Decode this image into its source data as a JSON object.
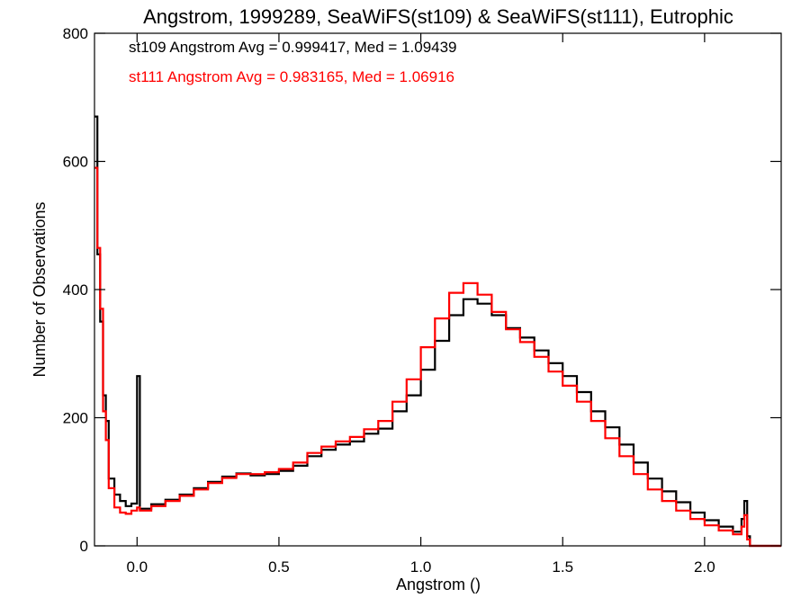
{
  "chart_data": {
    "type": "line",
    "title": "Angstrom, 1999289, SeaWiFS(st109) & SeaWiFS(st111), Eutrophic",
    "xlabel": "Angstrom ()",
    "ylabel": "Number of Observations",
    "xlim": [
      -0.15,
      2.27
    ],
    "ylim": [
      0,
      800
    ],
    "xticks": [
      0.0,
      0.5,
      1.0,
      1.5,
      2.0
    ],
    "xtick_labels": [
      "0.0",
      "0.5",
      "1.0",
      "1.5",
      "2.0"
    ],
    "yticks": [
      0,
      200,
      400,
      600,
      800
    ],
    "ytick_labels": [
      "0",
      "200",
      "400",
      "600",
      "800"
    ],
    "step": "histogram",
    "grid": false,
    "annotations": [
      {
        "text": "st109 Angstrom Avg = 0.999417, Med = 1.09439",
        "color": "#000000"
      },
      {
        "text": "st111 Angstrom Avg = 0.983165, Med = 1.06916",
        "color": "#ff0000"
      }
    ],
    "series": [
      {
        "color": "#000000",
        "points": [
          [
            -0.15,
            670
          ],
          [
            -0.14,
            455
          ],
          [
            -0.13,
            350
          ],
          [
            -0.12,
            235
          ],
          [
            -0.11,
            195
          ],
          [
            -0.1,
            105
          ],
          [
            -0.08,
            80
          ],
          [
            -0.06,
            70
          ],
          [
            -0.04,
            62
          ],
          [
            -0.02,
            66
          ],
          [
            0.0,
            265
          ],
          [
            0.01,
            58
          ],
          [
            0.05,
            65
          ],
          [
            0.1,
            72
          ],
          [
            0.15,
            80
          ],
          [
            0.2,
            90
          ],
          [
            0.25,
            100
          ],
          [
            0.3,
            108
          ],
          [
            0.35,
            113
          ],
          [
            0.4,
            110
          ],
          [
            0.45,
            112
          ],
          [
            0.5,
            117
          ],
          [
            0.55,
            125
          ],
          [
            0.6,
            140
          ],
          [
            0.65,
            150
          ],
          [
            0.7,
            158
          ],
          [
            0.75,
            163
          ],
          [
            0.8,
            175
          ],
          [
            0.85,
            183
          ],
          [
            0.9,
            210
          ],
          [
            0.95,
            235
          ],
          [
            1.0,
            275
          ],
          [
            1.05,
            320
          ],
          [
            1.1,
            360
          ],
          [
            1.15,
            385
          ],
          [
            1.2,
            378
          ],
          [
            1.25,
            360
          ],
          [
            1.3,
            340
          ],
          [
            1.35,
            325
          ],
          [
            1.4,
            305
          ],
          [
            1.45,
            285
          ],
          [
            1.5,
            265
          ],
          [
            1.55,
            240
          ],
          [
            1.6,
            210
          ],
          [
            1.65,
            185
          ],
          [
            1.7,
            158
          ],
          [
            1.75,
            130
          ],
          [
            1.8,
            105
          ],
          [
            1.85,
            85
          ],
          [
            1.9,
            68
          ],
          [
            1.95,
            52
          ],
          [
            2.0,
            40
          ],
          [
            2.05,
            30
          ],
          [
            2.1,
            22
          ],
          [
            2.13,
            42
          ],
          [
            2.14,
            70
          ],
          [
            2.15,
            15
          ],
          [
            2.16,
            0
          ],
          [
            2.27,
            0
          ]
        ]
      },
      {
        "color": "#ff0000",
        "points": [
          [
            -0.15,
            590
          ],
          [
            -0.14,
            465
          ],
          [
            -0.13,
            370
          ],
          [
            -0.12,
            210
          ],
          [
            -0.11,
            165
          ],
          [
            -0.1,
            90
          ],
          [
            -0.08,
            60
          ],
          [
            -0.06,
            52
          ],
          [
            -0.04,
            50
          ],
          [
            -0.02,
            55
          ],
          [
            0.0,
            60
          ],
          [
            0.01,
            55
          ],
          [
            0.05,
            62
          ],
          [
            0.1,
            70
          ],
          [
            0.15,
            78
          ],
          [
            0.2,
            88
          ],
          [
            0.25,
            98
          ],
          [
            0.3,
            106
          ],
          [
            0.35,
            112
          ],
          [
            0.4,
            112
          ],
          [
            0.45,
            115
          ],
          [
            0.5,
            120
          ],
          [
            0.55,
            130
          ],
          [
            0.6,
            145
          ],
          [
            0.65,
            155
          ],
          [
            0.7,
            163
          ],
          [
            0.75,
            170
          ],
          [
            0.8,
            182
          ],
          [
            0.85,
            195
          ],
          [
            0.9,
            225
          ],
          [
            0.95,
            260
          ],
          [
            1.0,
            310
          ],
          [
            1.05,
            355
          ],
          [
            1.1,
            395
          ],
          [
            1.15,
            410
          ],
          [
            1.2,
            392
          ],
          [
            1.25,
            365
          ],
          [
            1.3,
            338
          ],
          [
            1.35,
            318
          ],
          [
            1.4,
            295
          ],
          [
            1.45,
            272
          ],
          [
            1.5,
            250
          ],
          [
            1.55,
            225
          ],
          [
            1.6,
            195
          ],
          [
            1.65,
            168
          ],
          [
            1.7,
            140
          ],
          [
            1.75,
            112
          ],
          [
            1.8,
            88
          ],
          [
            1.85,
            70
          ],
          [
            1.9,
            55
          ],
          [
            1.95,
            42
          ],
          [
            2.0,
            32
          ],
          [
            2.05,
            24
          ],
          [
            2.1,
            18
          ],
          [
            2.13,
            30
          ],
          [
            2.14,
            48
          ],
          [
            2.15,
            10
          ],
          [
            2.16,
            0
          ],
          [
            2.27,
            0
          ]
        ]
      }
    ]
  }
}
